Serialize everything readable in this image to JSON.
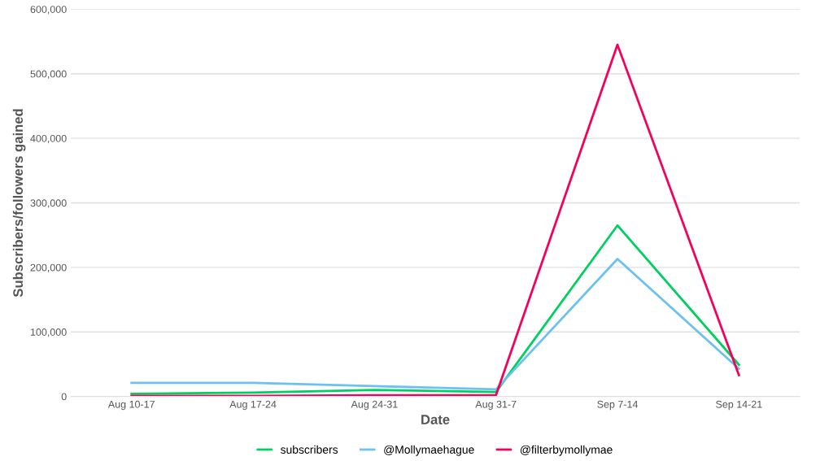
{
  "chart_data": {
    "type": "line",
    "xlabel": "Date",
    "ylabel": "Subscribers/followers gained",
    "categories": [
      "Aug 10-17",
      "Aug 17-24",
      "Aug 24-31",
      "Aug 31-7",
      "Sep 7-14",
      "Sep 14-21"
    ],
    "series": [
      {
        "name": "subscribers",
        "color": "#00d062",
        "values": [
          4000,
          6000,
          10000,
          7000,
          265000,
          49000
        ]
      },
      {
        "name": "@Mollymaehague",
        "color": "#6cc1f0",
        "values": [
          21000,
          21000,
          16000,
          11000,
          213000,
          43000
        ]
      },
      {
        "name": "@filterbymollymae",
        "color": "#f5005a",
        "values": [
          1000,
          1000,
          2000,
          2000,
          545000,
          33000
        ]
      }
    ],
    "ylim": [
      0,
      600000
    ],
    "yticks": [
      {
        "value": 0,
        "label": "0"
      },
      {
        "value": 100000,
        "label": "100,000"
      },
      {
        "value": 200000,
        "label": "200,000"
      },
      {
        "value": 300000,
        "label": "300,000"
      },
      {
        "value": 400000,
        "label": "400,000"
      },
      {
        "value": 500000,
        "label": "500,000"
      },
      {
        "value": 600000,
        "label": "600,000"
      }
    ],
    "grid": "y",
    "legend": "bottom",
    "marker": "none",
    "line_style": "solid"
  }
}
